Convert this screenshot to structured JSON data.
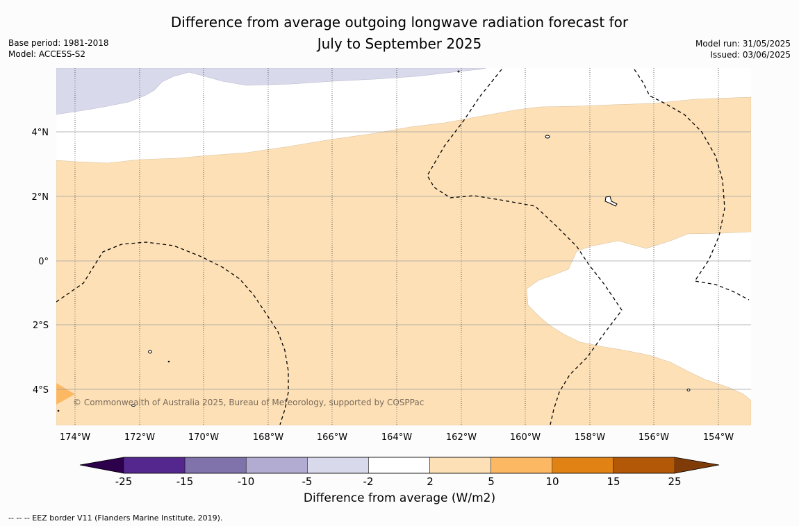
{
  "title_line1": "Difference from average outgoing longwave radiation forecast for",
  "title_line2": "July to September 2025",
  "base_period": "Base period: 1981-2018",
  "model": "Model: ACCESS-S2",
  "model_run": "Model run: 31/05/2025",
  "issued": "Issued: 03/06/2025",
  "copyright": "© Commonwealth of Australia 2025, Bureau of Meteorology, supported by COSPPac",
  "lon_labels": [
    "174°W",
    "172°W",
    "170°W",
    "168°W",
    "166°W",
    "164°W",
    "162°W",
    "160°W",
    "158°W",
    "156°W",
    "154°W"
  ],
  "lat_labels": [
    "4°N",
    "2°N",
    "0°",
    "2°S",
    "4°S"
  ],
  "colorbar": {
    "title": "Difference from average (W/m2)",
    "ticks": [
      "-25",
      "-15",
      "-10",
      "-5",
      "-2",
      "2",
      "5",
      "10",
      "15",
      "25"
    ],
    "colors": [
      "#54278f",
      "#8073ac",
      "#b2abd2",
      "#d8daeb",
      "#ffffff",
      "#fee0b6",
      "#fdb863",
      "#e08214",
      "#b35806"
    ],
    "under_color": "#2d004b",
    "over_color": "#7f3b08"
  },
  "footer": "--  --  -- EEZ border V11 (Flanders Marine Institute, 2019).",
  "map_colors": {
    "positive_2_5": "#fde0b6",
    "positive_5_10": "#fdb863",
    "negative_5_2": "#d8daeb",
    "neutral": "#ffffff"
  }
}
